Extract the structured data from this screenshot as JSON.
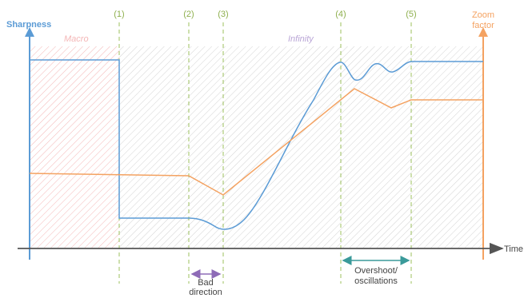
{
  "chart_data": {
    "type": "line",
    "left_axis_label": "Sharpness",
    "right_axis_label_line1": "Zoom",
    "right_axis_label_line2": "factor",
    "x_axis_label": "Time",
    "regions": {
      "macro_label": "Macro",
      "infinity_label": "Infinity"
    },
    "markers": [
      "(1)",
      "(2)",
      "(3)",
      "(4)",
      "(5)"
    ],
    "annotations": {
      "bad_direction_line1": "Bad",
      "bad_direction_line2": "direction",
      "overshoot_line1": "Overshoot/",
      "overshoot_line2": "oscillations"
    },
    "series": [
      {
        "color": "#5b9bd5"
      },
      {
        "color": "#f4a261"
      }
    ],
    "colors": {
      "left_axis": "#5b9bd5",
      "right_axis": "#f4a261",
      "marker_line": "#9cc05e",
      "bad_direction": "#8e6bb7",
      "overshoot": "#3a9a9a",
      "macro_fill": "#f4b6b6",
      "infinity_fill": "#c9c9c9"
    }
  }
}
